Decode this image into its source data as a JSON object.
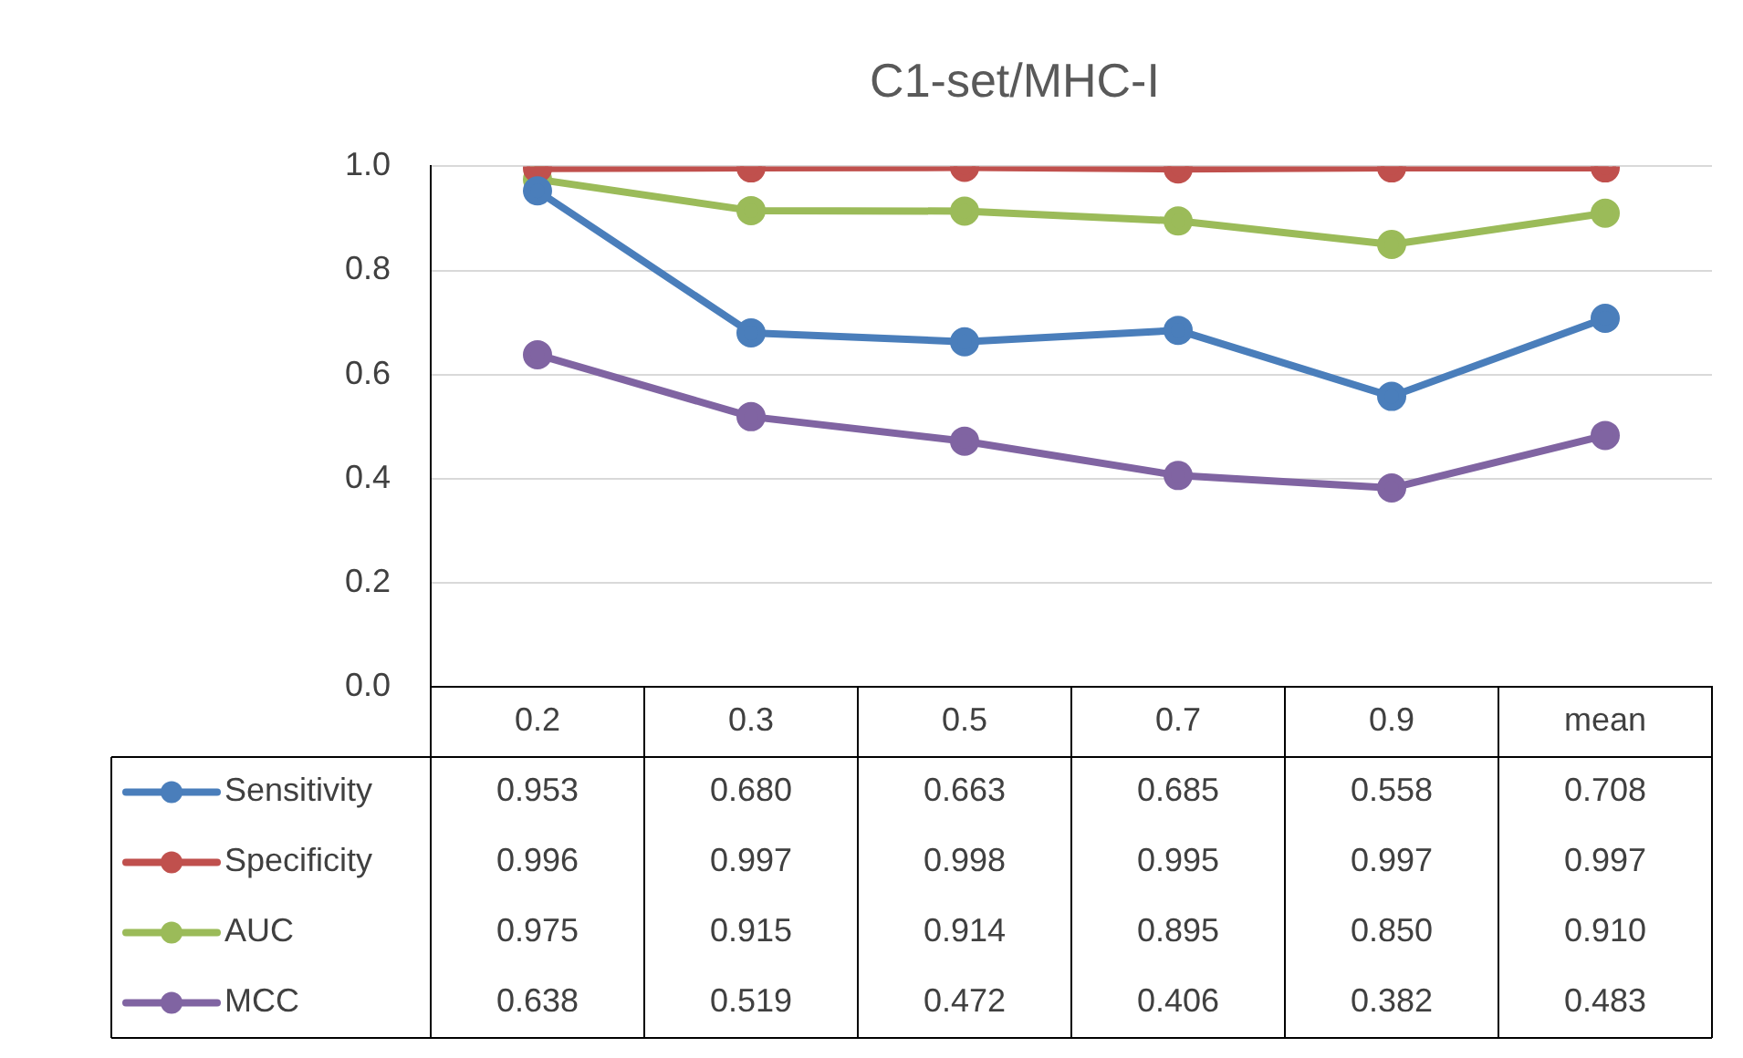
{
  "chart_data": {
    "type": "line",
    "title": "C1-set/MHC-I",
    "categories": [
      "0.2",
      "0.3",
      "0.5",
      "0.7",
      "0.9",
      "mean"
    ],
    "series": [
      {
        "name": "Sensitivity",
        "color": "#4a7ebb",
        "values": [
          0.953,
          0.68,
          0.663,
          0.685,
          0.558,
          0.708
        ],
        "value_labels": [
          "0.953",
          "0.680",
          "0.663",
          "0.685",
          "0.558",
          "0.708"
        ]
      },
      {
        "name": "Specificity",
        "color": "#c0504d",
        "values": [
          0.996,
          0.997,
          0.998,
          0.995,
          0.997,
          0.997
        ],
        "value_labels": [
          "0.996",
          "0.997",
          "0.998",
          "0.995",
          "0.997",
          "0.997"
        ]
      },
      {
        "name": "AUC",
        "color": "#9bbb59",
        "values": [
          0.975,
          0.915,
          0.914,
          0.895,
          0.85,
          0.91
        ],
        "value_labels": [
          "0.975",
          "0.915",
          "0.914",
          "0.895",
          "0.850",
          "0.910"
        ]
      },
      {
        "name": "MCC",
        "color": "#8064a2",
        "values": [
          0.638,
          0.519,
          0.472,
          0.406,
          0.382,
          0.483
        ],
        "value_labels": [
          "0.638",
          "0.519",
          "0.472",
          "0.406",
          "0.382",
          "0.483"
        ]
      }
    ],
    "ylim": [
      0,
      1
    ],
    "yticks": [
      {
        "value": 0,
        "label": "0.0"
      },
      {
        "value": 0.2,
        "label": "0.2"
      },
      {
        "value": 0.4,
        "label": "0.4"
      },
      {
        "value": 0.6,
        "label": "0.6"
      },
      {
        "value": 0.8,
        "label": "0.8"
      },
      {
        "value": 1,
        "label": "1.0"
      }
    ],
    "grid": "y",
    "marker": "circle",
    "line_style": "solid",
    "legend": "bottom left"
  }
}
